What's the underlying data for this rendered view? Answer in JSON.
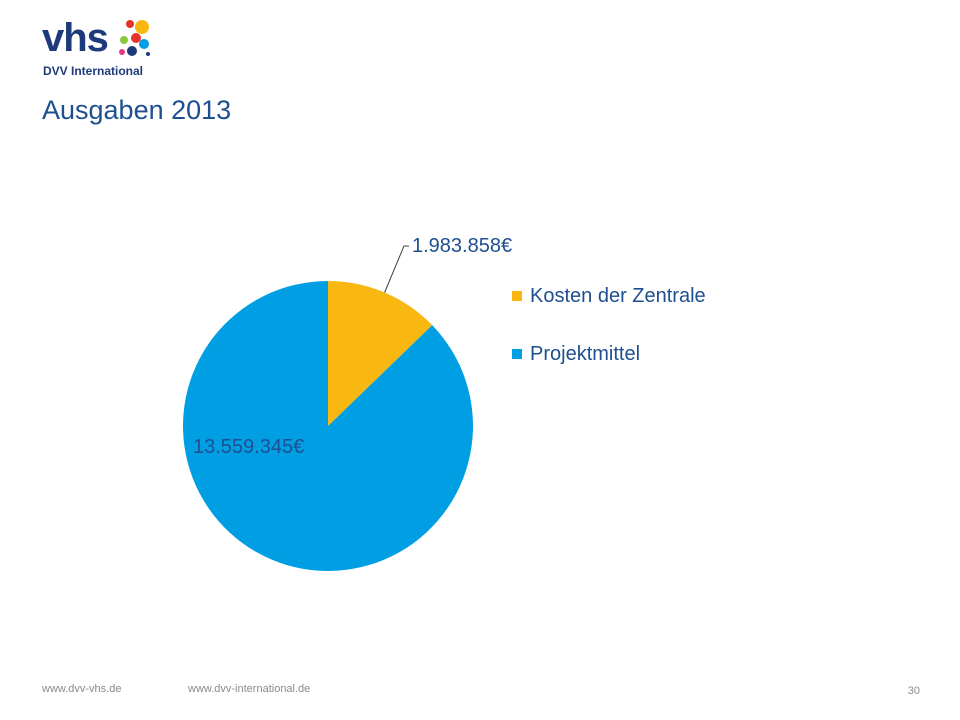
{
  "brand": {
    "logo_word": "vhs",
    "logo_subtitle": "DVV International",
    "logo_icon": "colored-dots-icon"
  },
  "slide": {
    "title": "Ausgaben 2013",
    "page_number": "30"
  },
  "footer": {
    "link_left": "www.dvv-vhs.de",
    "link_right": "www.dvv-international.de"
  },
  "colors": {
    "title": "#1d4f91",
    "kosten": "#f9b712",
    "projekt": "#009fe3",
    "footer": "#8a8a8a"
  },
  "chart_data": {
    "type": "pie",
    "title": "Ausgaben 2013",
    "series": [
      {
        "name": "",
        "values": [
          1983858,
          13559345
        ]
      }
    ],
    "categories": [
      "Kosten der Zentrale",
      "Projektmittel"
    ],
    "values": [
      1983858,
      13559345
    ],
    "data_labels": [
      "1.983.858€",
      "13.559.345€"
    ],
    "colors": [
      "#f9b712",
      "#009fe3"
    ],
    "start_angle": "12 o'clock",
    "direction": "clockwise",
    "legend": "right",
    "legend_entries": [
      "Kosten der Zentrale",
      "Projektmittel"
    ]
  }
}
